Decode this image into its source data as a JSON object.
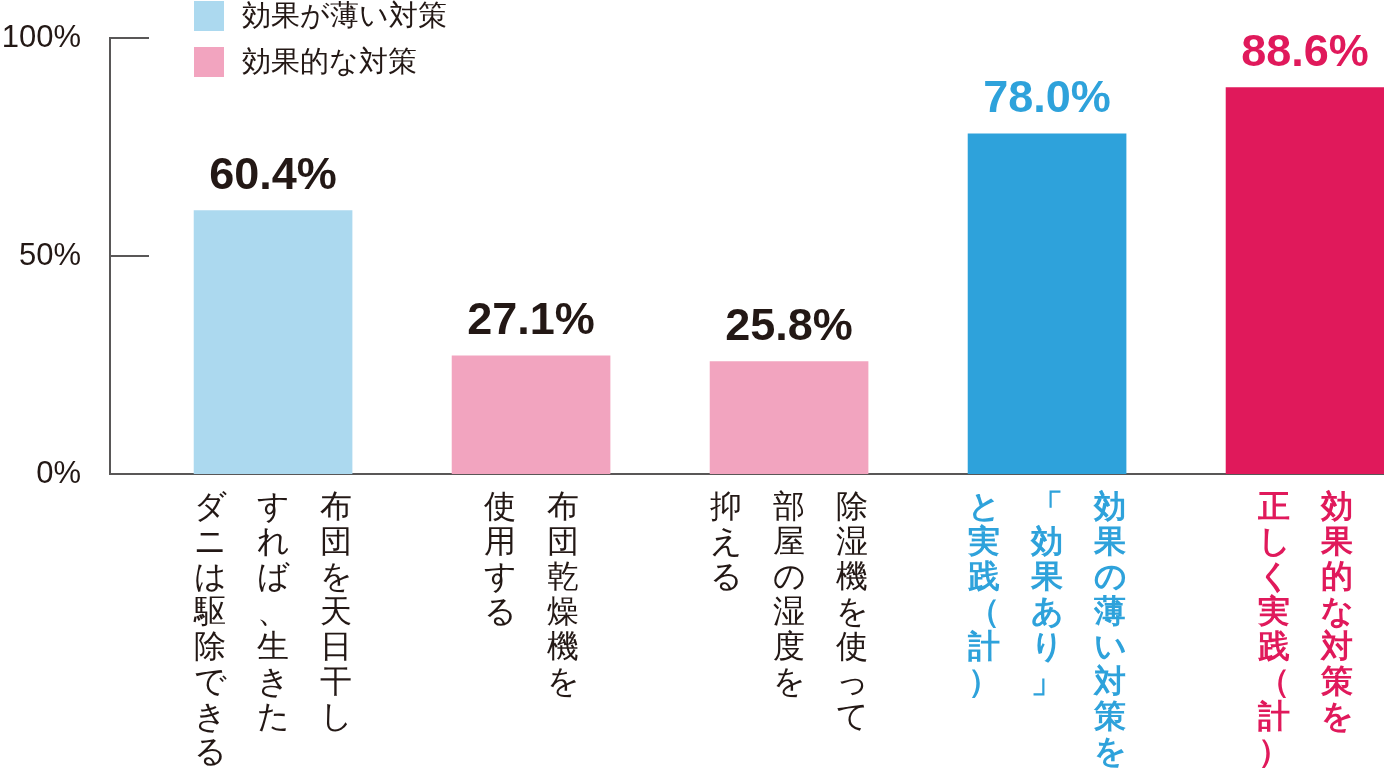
{
  "chart_data": {
    "type": "bar",
    "categories": [
      "布団を天日干しすれば、生きたダニは駆除できる",
      "布団乾燥機を使用する",
      "除湿機を使って部屋の湿度を抑える",
      "効果の薄い対策を「効果あり」と実践（計）",
      "効果的な対策を正しく実践（計）"
    ],
    "series": [
      {
        "name": "効果が薄い対策",
        "color": "#acd9ef",
        "values": [
          60.4,
          null,
          null,
          null,
          null
        ],
        "value_labels": [
          "60.4%",
          null,
          null,
          null,
          null
        ]
      },
      {
        "name": "効果的な対策",
        "color": "#f2a4bf",
        "values": [
          null,
          27.1,
          25.8,
          null,
          null
        ],
        "value_labels": [
          null,
          "27.1%",
          "25.8%",
          null,
          null
        ]
      },
      {
        "color": "#2ea2db",
        "values": [
          null,
          null,
          null,
          78.0,
          null
        ],
        "value_labels": [
          null,
          null,
          null,
          "78.0%",
          null
        ]
      },
      {
        "color": "#e0195b",
        "values": [
          null,
          null,
          null,
          null,
          88.6
        ],
        "value_labels": [
          null,
          null,
          null,
          null,
          "88.6%"
        ]
      }
    ],
    "ylim": [
      0,
      100
    ],
    "yticks": [
      {
        "value": 0,
        "label": "0%"
      },
      {
        "value": 50,
        "label": "50%"
      },
      {
        "value": 100,
        "label": "100%"
      }
    ],
    "grid": false,
    "legend": "top left"
  }
}
